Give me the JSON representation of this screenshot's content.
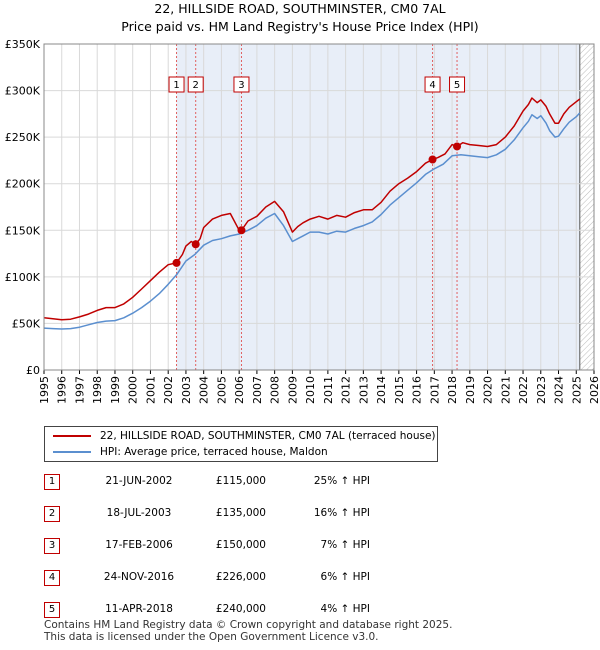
{
  "title": {
    "line1": "22, HILLSIDE ROAD, SOUTHMINSTER, CM0 7AL",
    "line2": "Price paid vs. HM Land Registry's House Price Index (HPI)"
  },
  "colors": {
    "property": "#c00000",
    "hpi": "#5b8fcf",
    "highlight": "#e8eef8",
    "hatch": "#bbbbbb",
    "grid": "#d9d9d9"
  },
  "chart_data": {
    "type": "line",
    "title": "22, HILLSIDE ROAD, SOUTHMINSTER, CM0 7AL",
    "xlabel": "",
    "ylabel": "",
    "xlim": [
      1995,
      2026
    ],
    "ylim": [
      0,
      350000
    ],
    "y_ticks": [
      {
        "value": 0,
        "label": "£0"
      },
      {
        "value": 50000,
        "label": "£50K"
      },
      {
        "value": 100000,
        "label": "£100K"
      },
      {
        "value": 150000,
        "label": "£150K"
      },
      {
        "value": 200000,
        "label": "£200K"
      },
      {
        "value": 250000,
        "label": "£250K"
      },
      {
        "value": 300000,
        "label": "£300K"
      },
      {
        "value": 350000,
        "label": "£350K"
      }
    ],
    "x_ticks": [
      "1995",
      "1996",
      "1997",
      "1998",
      "1999",
      "2000",
      "2001",
      "2002",
      "2003",
      "2004",
      "2005",
      "2006",
      "2007",
      "2008",
      "2009",
      "2010",
      "2011",
      "2012",
      "2013",
      "2014",
      "2015",
      "2016",
      "2017",
      "2018",
      "2019",
      "2020",
      "2021",
      "2022",
      "2023",
      "2024",
      "2025",
      "2026"
    ],
    "highlight_span": [
      2002.47,
      2025.2
    ],
    "hatch_start": 2025.2,
    "series": [
      {
        "name": "22, HILLSIDE ROAD, SOUTHMINSTER, CM0 7AL (terraced house)",
        "x": [
          1995,
          1995.5,
          1996,
          1996.5,
          1997,
          1997.5,
          1998,
          1998.5,
          1999,
          1999.5,
          2000,
          2000.5,
          2001,
          2001.5,
          2002,
          2002.47,
          2002.8,
          2003,
          2003.3,
          2003.55,
          2003.8,
          2004,
          2004.5,
          2005,
          2005.5,
          2006,
          2006.13,
          2006.5,
          2007,
          2007.5,
          2008,
          2008.5,
          2009,
          2009.3,
          2009.6,
          2010,
          2010.5,
          2011,
          2011.5,
          2012,
          2012.5,
          2013,
          2013.5,
          2014,
          2014.5,
          2015,
          2015.5,
          2016,
          2016.5,
          2016.9,
          2017.2,
          2017.6,
          2018,
          2018.28,
          2018.6,
          2019,
          2019.5,
          2020,
          2020.5,
          2021,
          2021.5,
          2022,
          2022.3,
          2022.5,
          2022.8,
          2023,
          2023.3,
          2023.5,
          2023.8,
          2024,
          2024.3,
          2024.6,
          2025,
          2025.2
        ],
        "values": [
          56000,
          55000,
          54000,
          54500,
          57000,
          60000,
          64000,
          67000,
          67000,
          71000,
          78000,
          87000,
          96000,
          105000,
          113000,
          115000,
          124000,
          133000,
          138000,
          135000,
          141000,
          153000,
          162000,
          166000,
          168000,
          150000,
          150000,
          160000,
          165000,
          175000,
          181000,
          170000,
          148000,
          154000,
          158000,
          162000,
          165000,
          162000,
          166000,
          164000,
          169000,
          172000,
          172000,
          180000,
          192000,
          200000,
          206000,
          213000,
          222000,
          226000,
          228000,
          232000,
          242000,
          240000,
          244000,
          242000,
          241000,
          240000,
          242000,
          250000,
          262000,
          278000,
          285000,
          292000,
          287000,
          290000,
          283000,
          275000,
          265000,
          265000,
          275000,
          282000,
          288000,
          291000
        ]
      },
      {
        "name": "HPI: Average price, terraced house, Maldon",
        "x": [
          1995,
          1995.5,
          1996,
          1996.5,
          1997,
          1997.5,
          1998,
          1998.5,
          1999,
          1999.5,
          2000,
          2000.5,
          2001,
          2001.5,
          2002,
          2002.5,
          2003,
          2003.5,
          2004,
          2004.5,
          2005,
          2005.5,
          2006,
          2006.5,
          2007,
          2007.5,
          2008,
          2008.5,
          2009,
          2009.3,
          2009.6,
          2010,
          2010.5,
          2011,
          2011.5,
          2012,
          2012.5,
          2013,
          2013.5,
          2014,
          2014.5,
          2015,
          2015.5,
          2016,
          2016.5,
          2017,
          2017.5,
          2018,
          2018.5,
          2019,
          2019.5,
          2020,
          2020.5,
          2021,
          2021.5,
          2022,
          2022.3,
          2022.5,
          2022.8,
          2023,
          2023.3,
          2023.5,
          2023.8,
          2024,
          2024.3,
          2024.6,
          2025,
          2025.2
        ],
        "values": [
          45000,
          44500,
          44000,
          44500,
          46000,
          48500,
          51000,
          52500,
          53000,
          56000,
          61000,
          67000,
          74000,
          82000,
          92000,
          103000,
          117000,
          124000,
          134000,
          139000,
          141000,
          144000,
          146000,
          150000,
          155000,
          163000,
          168000,
          155000,
          138000,
          141000,
          144000,
          148000,
          148000,
          146000,
          149000,
          148000,
          152000,
          155000,
          159000,
          167000,
          177000,
          185000,
          193000,
          201000,
          210000,
          216000,
          221000,
          230000,
          231000,
          230000,
          229000,
          228000,
          231000,
          237000,
          247000,
          260000,
          267000,
          274000,
          270000,
          273000,
          265000,
          257000,
          250000,
          251000,
          259000,
          266000,
          272000,
          276000
        ]
      }
    ],
    "sales": [
      {
        "id": "1",
        "x": 2002.47,
        "value": 115000
      },
      {
        "id": "2",
        "x": 2003.55,
        "value": 135000
      },
      {
        "id": "3",
        "x": 2006.13,
        "value": 150000
      },
      {
        "id": "4",
        "x": 2016.9,
        "value": 226000
      },
      {
        "id": "5",
        "x": 2018.28,
        "value": 240000
      }
    ]
  },
  "legend": {
    "property_label": "22, HILLSIDE ROAD, SOUTHMINSTER, CM0 7AL (terraced house)",
    "hpi_label": "HPI: Average price, terraced house, Maldon"
  },
  "sales_table": [
    {
      "num": "1",
      "date": "21-JUN-2002",
      "price": "£115,000",
      "hpi": "25% ↑ HPI"
    },
    {
      "num": "2",
      "date": "18-JUL-2003",
      "price": "£135,000",
      "hpi": "16% ↑ HPI"
    },
    {
      "num": "3",
      "date": "17-FEB-2006",
      "price": "£150,000",
      "hpi": "7% ↑ HPI"
    },
    {
      "num": "4",
      "date": "24-NOV-2016",
      "price": "£226,000",
      "hpi": "6% ↑ HPI"
    },
    {
      "num": "5",
      "date": "11-APR-2018",
      "price": "£240,000",
      "hpi": "4% ↑ HPI"
    }
  ],
  "footer": {
    "line1": "Contains HM Land Registry data © Crown copyright and database right 2025.",
    "line2": "This data is licensed under the Open Government Licence v3.0."
  }
}
